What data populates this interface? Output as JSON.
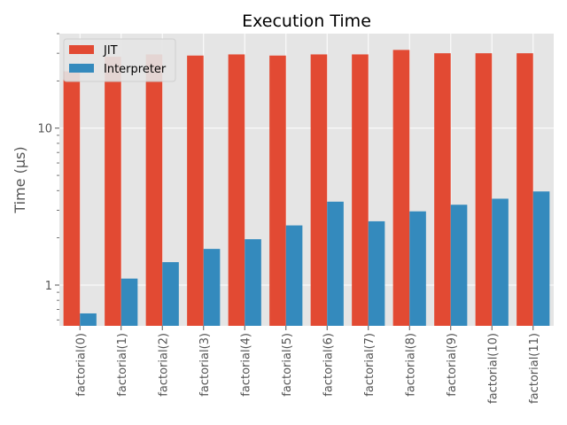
{
  "chart_data": {
    "type": "bar",
    "title": "Execution Time",
    "xlabel": "",
    "ylabel": "Time (µs)",
    "yscale": "log",
    "ylim": [
      0.55,
      40
    ],
    "yticks": [
      {
        "value": 1,
        "label": "1"
      },
      {
        "value": 10,
        "label": "10"
      }
    ],
    "grid": true,
    "legend_position": "top-left",
    "categories": [
      "factorial(0)",
      "factorial(1)",
      "factorial(2)",
      "factorial(3)",
      "factorial(4)",
      "factorial(5)",
      "factorial(6)",
      "factorial(7)",
      "factorial(8)",
      "factorial(9)",
      "factorial(10)",
      "factorial(11)"
    ],
    "series": [
      {
        "name": "JIT",
        "color": "#E24A33",
        "values": [
          23.0,
          28.5,
          29.5,
          29.0,
          29.5,
          29.0,
          29.5,
          29.5,
          31.5,
          30.0,
          30.0,
          30.0
        ]
      },
      {
        "name": "Interpreter",
        "color": "#348ABD",
        "values": [
          0.66,
          1.1,
          1.4,
          1.7,
          1.96,
          2.4,
          3.4,
          2.55,
          2.95,
          3.25,
          3.55,
          3.95
        ]
      }
    ]
  }
}
